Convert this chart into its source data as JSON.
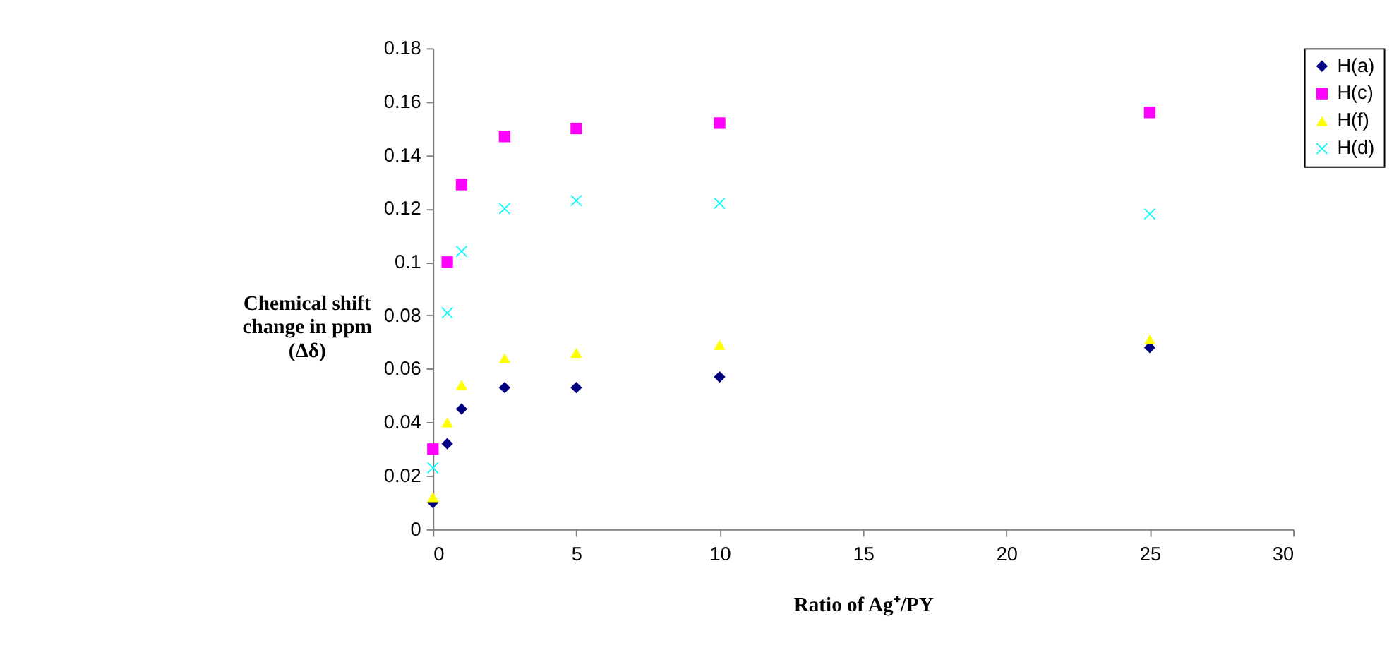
{
  "chart_data": {
    "type": "scatter",
    "xlabel": "Ratio of Ag⁺/PY",
    "ylabel": "Chemical shift\nchange in ppm\n(Δδ)",
    "x": [
      0,
      0.5,
      1,
      2.5,
      5,
      10,
      25
    ],
    "series": [
      {
        "name": "H(a)",
        "color": "#000080",
        "marker": "diamond",
        "values": [
          0.01,
          0.032,
          0.045,
          0.053,
          0.053,
          0.057,
          0.068
        ]
      },
      {
        "name": "H(c)",
        "color": "#ff00ff",
        "marker": "square",
        "values": [
          0.03,
          0.1,
          0.129,
          0.147,
          0.15,
          0.152,
          0.156
        ]
      },
      {
        "name": "H(f)",
        "color": "#ffff00",
        "marker": "triangle",
        "values": [
          0.012,
          0.04,
          0.054,
          0.064,
          0.066,
          0.069,
          0.071
        ]
      },
      {
        "name": "H(d)",
        "color": "#00ffff",
        "marker": "cross",
        "values": [
          0.023,
          0.081,
          0.104,
          0.12,
          0.123,
          0.122,
          0.118
        ]
      }
    ],
    "xlim": [
      0,
      30
    ],
    "xticks": [
      0,
      5,
      10,
      15,
      20,
      25,
      30
    ],
    "ylim": [
      0,
      0.18
    ],
    "yticks": [
      0,
      0.02,
      0.04,
      0.06,
      0.08,
      0.1,
      0.12,
      0.14,
      0.16,
      0.18
    ],
    "grid": false,
    "legend": "right"
  }
}
